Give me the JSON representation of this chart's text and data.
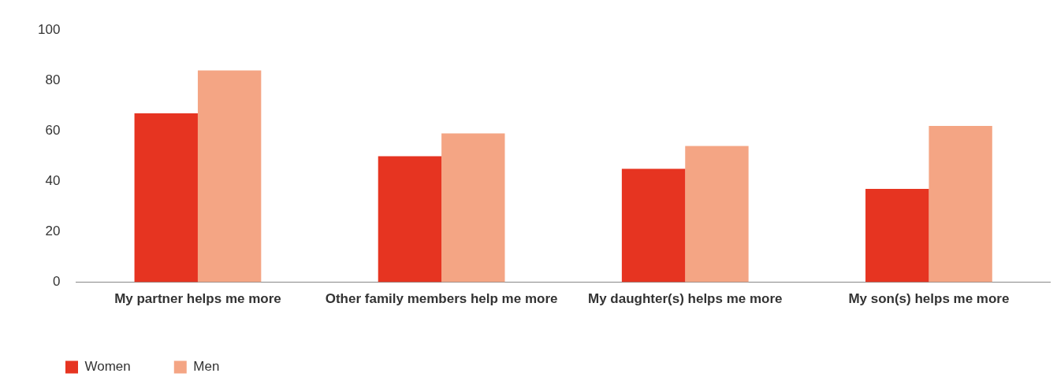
{
  "chart_data": {
    "type": "bar",
    "categories": [
      "My partner helps me more",
      "Other family members help me more",
      "My daughter(s) helps me more",
      "My son(s) helps me more"
    ],
    "series": [
      {
        "name": "Women",
        "color": "#e63421",
        "values": [
          67,
          50,
          45,
          37
        ]
      },
      {
        "name": "Men",
        "color": "#f4a584",
        "values": [
          84,
          59,
          54,
          62
        ]
      }
    ],
    "ylim": [
      0,
      100
    ],
    "yticks": [
      0,
      20,
      40,
      60,
      80,
      100
    ],
    "grid": false,
    "legend": "bottom left"
  }
}
